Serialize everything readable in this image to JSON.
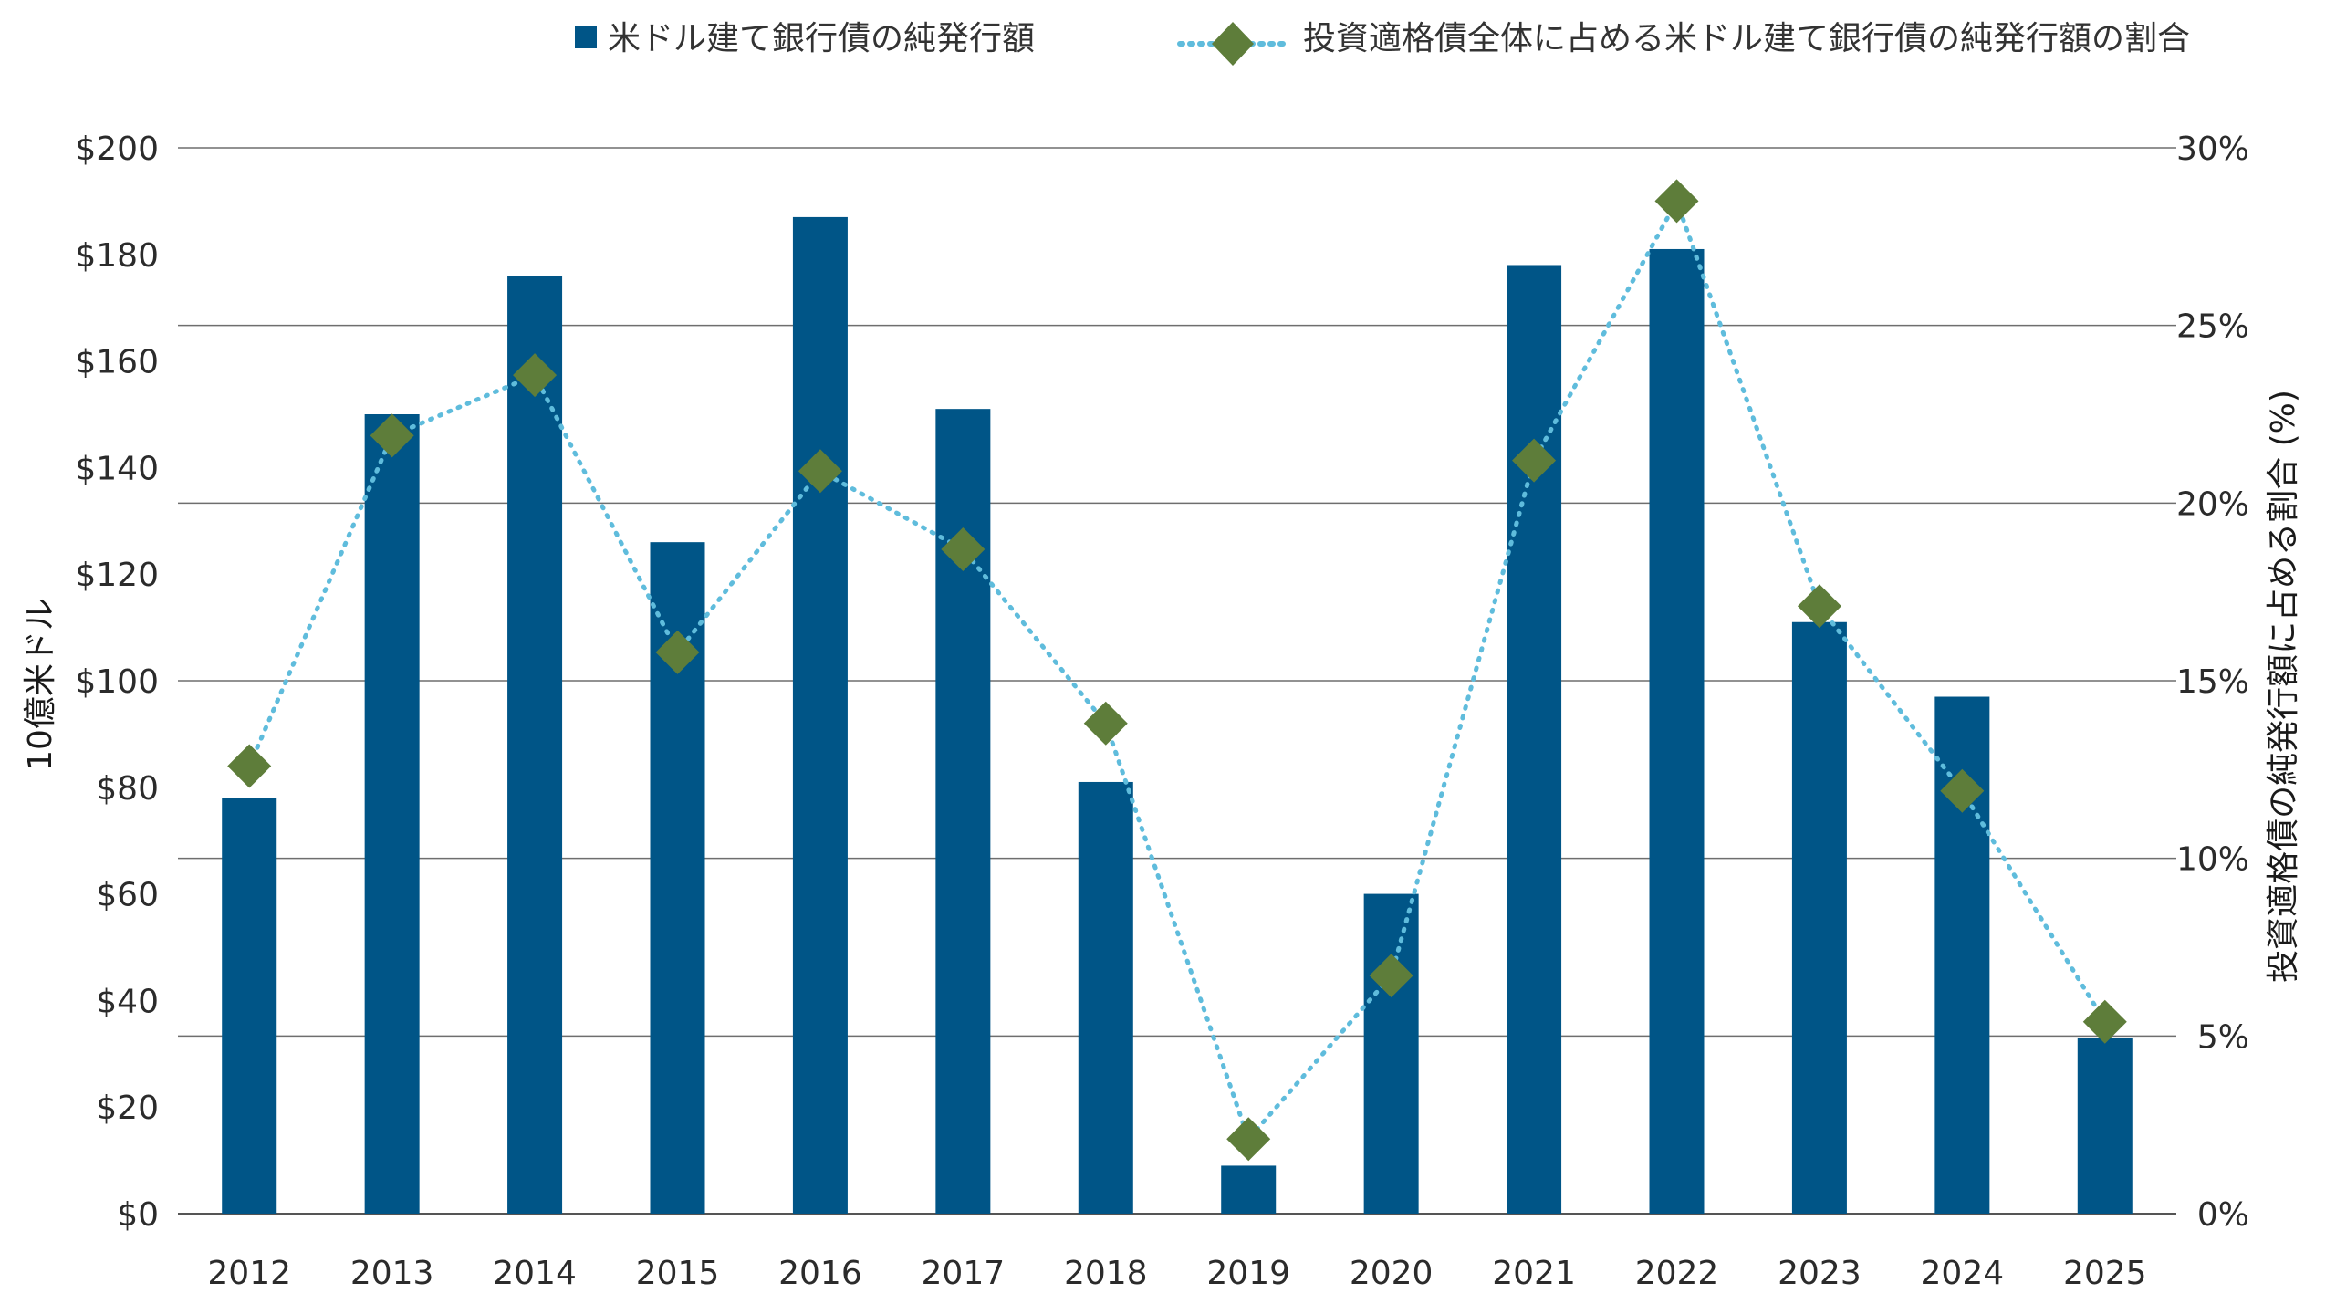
{
  "chart_data": {
    "type": "bar",
    "categories": [
      "2012",
      "2013",
      "2014",
      "2015",
      "2016",
      "2017",
      "2018",
      "2019",
      "2020",
      "2021",
      "2022",
      "2023",
      "2024",
      "2025"
    ],
    "series": [
      {
        "name": "米ドル建て銀行債の純発行額",
        "kind": "bar",
        "axis": "left",
        "color": "#005587",
        "values": [
          78,
          150,
          176,
          126,
          187,
          151,
          81,
          9,
          60,
          178,
          181,
          111,
          97,
          33
        ]
      },
      {
        "name": "投資適格債全体に占める米ドル建て銀行債の純発行額の割合",
        "kind": "line-marker",
        "axis": "right",
        "color": "#5fbcdc",
        "marker_color": "#5e7d3a",
        "values": [
          12.6,
          21.9,
          23.6,
          15.8,
          20.9,
          18.7,
          13.8,
          2.1,
          6.7,
          21.2,
          28.5,
          17.1,
          11.9,
          5.4
        ]
      }
    ],
    "ylabel_left": "10億米ドル",
    "ylabel_right": "投資適格債の純発行額に占める割合 (%)",
    "ylim_left": [
      0,
      200
    ],
    "ylim_right": [
      0,
      30
    ],
    "yticks_left": [
      "$0",
      "$20",
      "$40",
      "$60",
      "$80",
      "$100",
      "$120",
      "$140",
      "$160",
      "$180",
      "$200"
    ],
    "yticks_right": [
      "0%",
      "5%",
      "10%",
      "15%",
      "20%",
      "25%",
      "30%"
    ],
    "legend_position": "top"
  }
}
